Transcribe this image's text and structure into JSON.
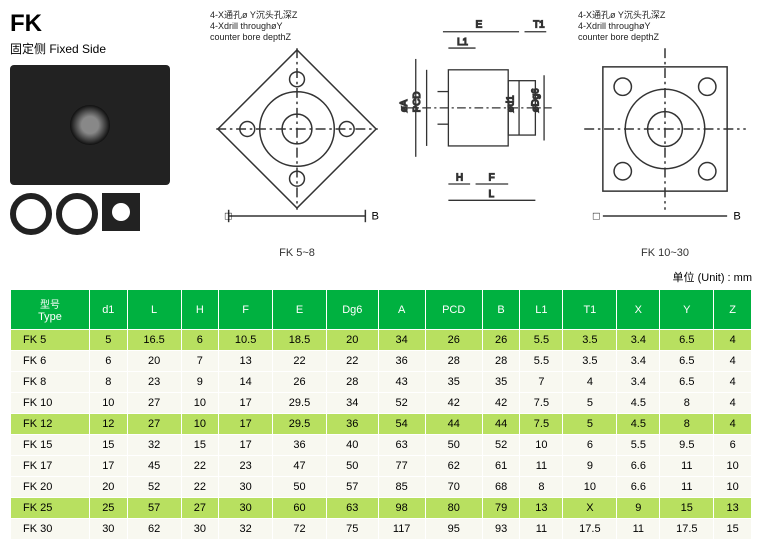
{
  "title": "FK",
  "subtitle": "固定侧 Fixed Side",
  "annotations": {
    "left": "4-X通孔ø Y沉头孔深Z\n4-Xdrill throughøY\ncounter bore depthZ",
    "right": "4-X通孔ø Y沉头孔深Z\n4-Xdrill throughøY\ncounter bore depthZ"
  },
  "diagram_labels": {
    "fk58": "FK 5~8",
    "fk1030": "FK 10~30",
    "dims": {
      "B": "B",
      "PCD": "PCD",
      "A": "øA",
      "H": "H",
      "F": "F",
      "L": "L",
      "L1": "L1",
      "E": "E",
      "T1": "T1",
      "d1": "ød1",
      "Dg6": "øDg6"
    }
  },
  "unit_label": "单位 (Unit) :  mm",
  "table": {
    "headers": [
      {
        "cn": "型号",
        "en": "Type"
      },
      {
        "cn": "",
        "en": "d1"
      },
      {
        "cn": "",
        "en": "L"
      },
      {
        "cn": "",
        "en": "H"
      },
      {
        "cn": "",
        "en": "F"
      },
      {
        "cn": "",
        "en": "E"
      },
      {
        "cn": "",
        "en": "Dg6"
      },
      {
        "cn": "",
        "en": "A"
      },
      {
        "cn": "",
        "en": "PCD"
      },
      {
        "cn": "",
        "en": "B"
      },
      {
        "cn": "",
        "en": "L1"
      },
      {
        "cn": "",
        "en": "T1"
      },
      {
        "cn": "",
        "en": "X"
      },
      {
        "cn": "",
        "en": "Y"
      },
      {
        "cn": "",
        "en": "Z"
      }
    ],
    "rows": [
      {
        "style": "highlight",
        "cells": [
          "FK  5",
          "5",
          "16.5",
          "6",
          "10.5",
          "18.5",
          "20",
          "34",
          "26",
          "26",
          "5.5",
          "3.5",
          "3.4",
          "6.5",
          "4"
        ]
      },
      {
        "style": "odd",
        "cells": [
          "FK  6",
          "6",
          "20",
          "7",
          "13",
          "22",
          "22",
          "36",
          "28",
          "28",
          "5.5",
          "3.5",
          "3.4",
          "6.5",
          "4"
        ]
      },
      {
        "style": "odd",
        "cells": [
          "FK  8",
          "8",
          "23",
          "9",
          "14",
          "26",
          "28",
          "43",
          "35",
          "35",
          "7",
          "4",
          "3.4",
          "6.5",
          "4"
        ]
      },
      {
        "style": "odd",
        "cells": [
          "FK  10",
          "10",
          "27",
          "10",
          "17",
          "29.5",
          "34",
          "52",
          "42",
          "42",
          "7.5",
          "5",
          "4.5",
          "8",
          "4"
        ]
      },
      {
        "style": "highlight",
        "cells": [
          "FK  12",
          "12",
          "27",
          "10",
          "17",
          "29.5",
          "36",
          "54",
          "44",
          "44",
          "7.5",
          "5",
          "4.5",
          "8",
          "4"
        ]
      },
      {
        "style": "odd",
        "cells": [
          "FK  15",
          "15",
          "32",
          "15",
          "17",
          "36",
          "40",
          "63",
          "50",
          "52",
          "10",
          "6",
          "5.5",
          "9.5",
          "6"
        ]
      },
      {
        "style": "odd",
        "cells": [
          "FK  17",
          "17",
          "45",
          "22",
          "23",
          "47",
          "50",
          "77",
          "62",
          "61",
          "11",
          "9",
          "6.6",
          "11",
          "10"
        ]
      },
      {
        "style": "odd",
        "cells": [
          "FK  20",
          "20",
          "52",
          "22",
          "30",
          "50",
          "57",
          "85",
          "70",
          "68",
          "8",
          "10",
          "6.6",
          "11",
          "10"
        ]
      },
      {
        "style": "highlight",
        "cells": [
          "FK  25",
          "25",
          "57",
          "27",
          "30",
          "60",
          "63",
          "98",
          "80",
          "79",
          "13",
          "X",
          "9",
          "15",
          "13"
        ]
      },
      {
        "style": "odd",
        "cells": [
          "FK  30",
          "30",
          "62",
          "30",
          "32",
          "72",
          "75",
          "117",
          "95",
          "93",
          "11",
          "17.5",
          "11",
          "17.5",
          "15"
        ]
      }
    ]
  },
  "colors": {
    "header_bg": "#00b140",
    "row_even": "#d4f0a0",
    "row_odd": "#f8f8f0",
    "row_highlight": "#b8e060",
    "diagram_stroke": "#333333"
  }
}
